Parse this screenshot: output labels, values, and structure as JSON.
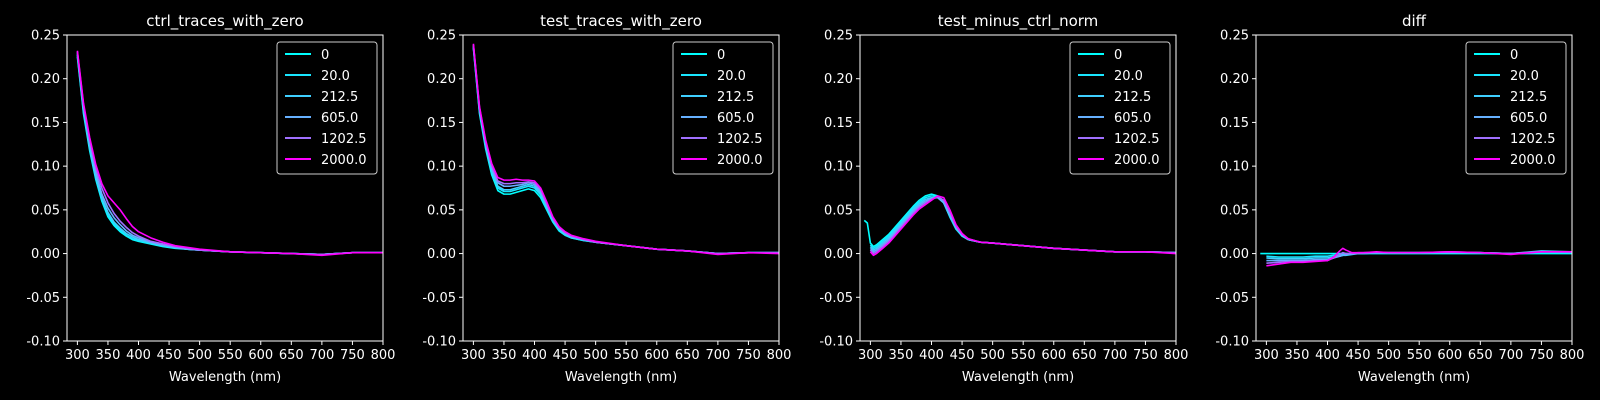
{
  "figure": {
    "background": "#000000",
    "foreground": "#ffffff"
  },
  "chart_data": [
    {
      "type": "line",
      "title": "ctrl_traces_with_zero",
      "xlabel": "Wavelength (nm)",
      "ylabel": "",
      "xlim": [
        283,
        800
      ],
      "ylim": [
        -0.1,
        0.25
      ],
      "xticks": [
        300,
        350,
        400,
        450,
        500,
        550,
        600,
        650,
        700,
        750,
        800
      ],
      "yticks": [
        -0.1,
        -0.05,
        0.0,
        0.05,
        0.1,
        0.15,
        0.2,
        0.25
      ],
      "legend_position": "top-right",
      "x": [
        300,
        310,
        320,
        330,
        340,
        350,
        360,
        370,
        380,
        390,
        400,
        420,
        440,
        460,
        480,
        500,
        550,
        600,
        650,
        700,
        750,
        800
      ],
      "series": [
        {
          "name": "0",
          "color": "#00ffff",
          "values": [
            0.225,
            0.16,
            0.118,
            0.085,
            0.06,
            0.042,
            0.032,
            0.025,
            0.02,
            0.016,
            0.014,
            0.011,
            0.008,
            0.006,
            0.005,
            0.004,
            0.002,
            0.001,
            0.0,
            -0.001,
            0.001,
            0.001
          ]
        },
        {
          "name": "20.0",
          "color": "#19e6ff",
          "values": [
            0.227,
            0.162,
            0.12,
            0.087,
            0.062,
            0.044,
            0.034,
            0.027,
            0.021,
            0.017,
            0.015,
            0.012,
            0.009,
            0.007,
            0.005,
            0.004,
            0.002,
            0.001,
            0.0,
            -0.001,
            0.001,
            0.001
          ]
        },
        {
          "name": "212.5",
          "color": "#3fcfff",
          "values": [
            0.228,
            0.164,
            0.122,
            0.089,
            0.064,
            0.047,
            0.036,
            0.029,
            0.023,
            0.019,
            0.016,
            0.012,
            0.009,
            0.007,
            0.005,
            0.004,
            0.002,
            0.001,
            0.0,
            -0.001,
            0.001,
            0.001
          ]
        },
        {
          "name": "605.0",
          "color": "#66b0ff",
          "values": [
            0.23,
            0.167,
            0.126,
            0.093,
            0.068,
            0.052,
            0.041,
            0.033,
            0.026,
            0.021,
            0.018,
            0.013,
            0.01,
            0.007,
            0.005,
            0.004,
            0.002,
            0.001,
            0.0,
            -0.001,
            0.001,
            0.001
          ]
        },
        {
          "name": "1202.5",
          "color": "#a070ff",
          "values": [
            0.231,
            0.17,
            0.13,
            0.098,
            0.075,
            0.058,
            0.046,
            0.037,
            0.03,
            0.024,
            0.02,
            0.014,
            0.011,
            0.008,
            0.006,
            0.004,
            0.002,
            0.001,
            0.0,
            -0.001,
            0.001,
            0.001
          ]
        },
        {
          "name": "2000.0",
          "color": "#ff00ff",
          "values": [
            0.232,
            0.172,
            0.133,
            0.102,
            0.08,
            0.066,
            0.058,
            0.05,
            0.04,
            0.031,
            0.025,
            0.018,
            0.013,
            0.009,
            0.007,
            0.005,
            0.002,
            0.001,
            0.0,
            -0.002,
            0.001,
            0.001
          ]
        }
      ]
    },
    {
      "type": "line",
      "title": "test_traces_with_zero",
      "xlabel": "Wavelength (nm)",
      "ylabel": "",
      "xlim": [
        283,
        800
      ],
      "ylim": [
        -0.1,
        0.25
      ],
      "xticks": [
        300,
        350,
        400,
        450,
        500,
        550,
        600,
        650,
        700,
        750,
        800
      ],
      "yticks": [
        -0.1,
        -0.05,
        0.0,
        0.05,
        0.1,
        0.15,
        0.2,
        0.25
      ],
      "legend_position": "top-right",
      "x": [
        300,
        310,
        320,
        330,
        340,
        350,
        360,
        370,
        380,
        390,
        400,
        410,
        420,
        430,
        440,
        450,
        460,
        480,
        500,
        550,
        600,
        650,
        700,
        750,
        800
      ],
      "series": [
        {
          "name": "0",
          "color": "#00ffff",
          "values": [
            0.235,
            0.16,
            0.12,
            0.09,
            0.072,
            0.068,
            0.068,
            0.07,
            0.072,
            0.074,
            0.072,
            0.064,
            0.05,
            0.036,
            0.026,
            0.021,
            0.018,
            0.015,
            0.013,
            0.009,
            0.005,
            0.003,
            0.0,
            0.001,
            0.001
          ]
        },
        {
          "name": "20.0",
          "color": "#19e6ff",
          "values": [
            0.236,
            0.162,
            0.122,
            0.093,
            0.075,
            0.071,
            0.071,
            0.073,
            0.075,
            0.077,
            0.075,
            0.067,
            0.052,
            0.037,
            0.027,
            0.022,
            0.018,
            0.015,
            0.013,
            0.009,
            0.005,
            0.003,
            0.0,
            0.001,
            0.001
          ]
        },
        {
          "name": "212.5",
          "color": "#3fcfff",
          "values": [
            0.237,
            0.163,
            0.123,
            0.095,
            0.077,
            0.073,
            0.073,
            0.075,
            0.077,
            0.079,
            0.077,
            0.069,
            0.053,
            0.038,
            0.028,
            0.022,
            0.019,
            0.016,
            0.013,
            0.009,
            0.005,
            0.003,
            0.0,
            0.001,
            0.001
          ]
        },
        {
          "name": "605.0",
          "color": "#66b0ff",
          "values": [
            0.238,
            0.165,
            0.126,
            0.098,
            0.081,
            0.077,
            0.077,
            0.078,
            0.079,
            0.081,
            0.079,
            0.071,
            0.055,
            0.039,
            0.029,
            0.023,
            0.019,
            0.016,
            0.013,
            0.009,
            0.005,
            0.003,
            0.0,
            0.001,
            0.001
          ]
        },
        {
          "name": "1202.5",
          "color": "#a070ff",
          "values": [
            0.239,
            0.167,
            0.128,
            0.1,
            0.083,
            0.08,
            0.08,
            0.081,
            0.081,
            0.082,
            0.081,
            0.073,
            0.057,
            0.04,
            0.03,
            0.024,
            0.02,
            0.016,
            0.013,
            0.009,
            0.005,
            0.003,
            0.0,
            0.001,
            0.001
          ]
        },
        {
          "name": "2000.0",
          "color": "#ff00ff",
          "values": [
            0.24,
            0.168,
            0.13,
            0.103,
            0.087,
            0.084,
            0.084,
            0.085,
            0.084,
            0.084,
            0.083,
            0.075,
            0.059,
            0.042,
            0.031,
            0.025,
            0.021,
            0.017,
            0.014,
            0.009,
            0.005,
            0.003,
            -0.001,
            0.001,
            0.0
          ]
        }
      ]
    },
    {
      "type": "line",
      "title": "test_minus_ctrl_norm",
      "xlabel": "Wavelength (nm)",
      "ylabel": "",
      "xlim": [
        283,
        800
      ],
      "ylim": [
        -0.1,
        0.25
      ],
      "xticks": [
        300,
        350,
        400,
        450,
        500,
        550,
        600,
        650,
        700,
        750,
        800
      ],
      "yticks": [
        -0.1,
        -0.05,
        0.0,
        0.05,
        0.1,
        0.15,
        0.2,
        0.25
      ],
      "legend_position": "top-right",
      "x": [
        290,
        295,
        300,
        305,
        310,
        320,
        330,
        340,
        350,
        360,
        370,
        380,
        390,
        400,
        410,
        420,
        430,
        440,
        450,
        460,
        480,
        500,
        550,
        600,
        650,
        700,
        750,
        800
      ],
      "series": [
        {
          "name": "0",
          "color": "#00ffff",
          "values": [
            0.038,
            0.035,
            0.012,
            0.008,
            0.01,
            0.016,
            0.022,
            0.03,
            0.038,
            0.046,
            0.054,
            0.061,
            0.066,
            0.068,
            0.066,
            0.058,
            0.042,
            0.028,
            0.02,
            0.016,
            0.013,
            0.012,
            0.009,
            0.006,
            0.004,
            0.002,
            0.002,
            0.001
          ]
        },
        {
          "name": "20.0",
          "color": "#19e6ff",
          "values": [
            null,
            null,
            0.01,
            0.006,
            0.008,
            0.014,
            0.02,
            0.028,
            0.036,
            0.044,
            0.052,
            0.059,
            0.064,
            0.066,
            0.065,
            0.058,
            0.042,
            0.029,
            0.02,
            0.016,
            0.013,
            0.012,
            0.009,
            0.006,
            0.004,
            0.002,
            0.002,
            0.001
          ]
        },
        {
          "name": "212.5",
          "color": "#3fcfff",
          "values": [
            null,
            null,
            0.008,
            0.004,
            0.006,
            0.012,
            0.018,
            0.026,
            0.034,
            0.042,
            0.05,
            0.057,
            0.062,
            0.064,
            0.064,
            0.058,
            0.043,
            0.029,
            0.021,
            0.016,
            0.013,
            0.012,
            0.009,
            0.006,
            0.004,
            0.002,
            0.002,
            0.001
          ]
        },
        {
          "name": "605.0",
          "color": "#66b0ff",
          "values": [
            null,
            null,
            0.006,
            0.002,
            0.004,
            0.01,
            0.016,
            0.024,
            0.032,
            0.04,
            0.048,
            0.055,
            0.06,
            0.063,
            0.064,
            0.059,
            0.045,
            0.03,
            0.021,
            0.016,
            0.013,
            0.012,
            0.009,
            0.006,
            0.004,
            0.002,
            0.002,
            0.001
          ]
        },
        {
          "name": "1202.5",
          "color": "#a070ff",
          "values": [
            null,
            null,
            0.004,
            0.0,
            0.002,
            0.008,
            0.014,
            0.022,
            0.03,
            0.038,
            0.046,
            0.053,
            0.058,
            0.062,
            0.065,
            0.061,
            0.047,
            0.031,
            0.022,
            0.017,
            0.013,
            0.012,
            0.009,
            0.006,
            0.004,
            0.002,
            0.002,
            0.001
          ]
        },
        {
          "name": "2000.0",
          "color": "#ff00ff",
          "values": [
            null,
            null,
            0.002,
            -0.002,
            0.0,
            0.006,
            0.012,
            0.02,
            0.028,
            0.036,
            0.044,
            0.051,
            0.056,
            0.061,
            0.066,
            0.064,
            0.05,
            0.033,
            0.023,
            0.017,
            0.013,
            0.012,
            0.009,
            0.006,
            0.004,
            0.002,
            0.002,
            0.0
          ]
        }
      ]
    },
    {
      "type": "line",
      "title": "diff",
      "xlabel": "Wavelength (nm)",
      "ylabel": "",
      "xlim": [
        283,
        800
      ],
      "ylim": [
        -0.1,
        0.25
      ],
      "xticks": [
        300,
        350,
        400,
        450,
        500,
        550,
        600,
        650,
        700,
        750,
        800
      ],
      "yticks": [
        -0.1,
        -0.05,
        0.0,
        0.05,
        0.1,
        0.15,
        0.2,
        0.25
      ],
      "legend_position": "top-right",
      "x": [
        290,
        300,
        320,
        340,
        360,
        380,
        400,
        410,
        420,
        425,
        430,
        440,
        450,
        460,
        480,
        500,
        550,
        600,
        650,
        700,
        750,
        800
      ],
      "series": [
        {
          "name": "0",
          "color": "#00ffff",
          "values": [
            0.0,
            0.0,
            0.0,
            0.0,
            0.0,
            0.0,
            0.0,
            0.0,
            0.0,
            0.0,
            0.0,
            0.0,
            0.0,
            0.0,
            0.0,
            0.0,
            0.0,
            0.0,
            0.0,
            0.0,
            0.0,
            0.0
          ]
        },
        {
          "name": "20.0",
          "color": "#19e6ff",
          "values": [
            null,
            -0.003,
            -0.004,
            -0.004,
            -0.004,
            -0.003,
            -0.003,
            -0.002,
            -0.002,
            -0.001,
            -0.001,
            0.0,
            0.0,
            0.0,
            0.001,
            0.001,
            0.001,
            0.001,
            0.001,
            0.0,
            0.002,
            0.001
          ]
        },
        {
          "name": "212.5",
          "color": "#3fcfff",
          "values": [
            null,
            -0.005,
            -0.006,
            -0.006,
            -0.006,
            -0.005,
            -0.005,
            -0.004,
            -0.003,
            -0.002,
            -0.002,
            -0.001,
            0.0,
            0.0,
            0.001,
            0.001,
            0.001,
            0.001,
            0.001,
            0.0,
            0.003,
            0.002
          ]
        },
        {
          "name": "605.0",
          "color": "#66b0ff",
          "values": [
            null,
            -0.008,
            -0.008,
            -0.008,
            -0.008,
            -0.007,
            -0.007,
            -0.005,
            -0.003,
            -0.002,
            -0.001,
            0.0,
            0.0,
            0.001,
            0.001,
            0.001,
            0.001,
            0.001,
            0.001,
            0.0,
            0.002,
            0.002
          ]
        },
        {
          "name": "1202.5",
          "color": "#a070ff",
          "values": [
            null,
            -0.011,
            -0.01,
            -0.009,
            -0.009,
            -0.008,
            -0.008,
            -0.005,
            -0.001,
            0.001,
            0.0,
            0.0,
            0.001,
            0.001,
            0.001,
            0.001,
            0.001,
            0.002,
            0.001,
            0.0,
            0.002,
            0.002
          ]
        },
        {
          "name": "2000.0",
          "color": "#ff00ff",
          "values": [
            null,
            -0.014,
            -0.012,
            -0.01,
            -0.01,
            -0.009,
            -0.008,
            -0.004,
            0.003,
            0.006,
            0.004,
            0.001,
            0.001,
            0.001,
            0.002,
            0.001,
            0.001,
            0.002,
            0.001,
            -0.001,
            0.002,
            0.002
          ]
        }
      ]
    }
  ]
}
